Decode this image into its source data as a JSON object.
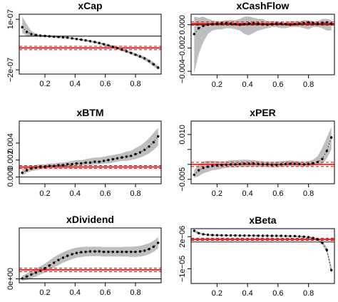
{
  "colors": {
    "band": "#bebebe",
    "red": "#ff0000",
    "redDash": "#e60000",
    "zero": "#000000",
    "curve": "#000000"
  },
  "chart_data": [
    {
      "type": "line",
      "title": "xCap",
      "xlim": [
        0.03,
        0.97
      ],
      "ylim": [
        -2.25e-07,
        1.3e-07
      ],
      "xticks": [
        0.2,
        0.4,
        0.6,
        0.8
      ],
      "xtick_labels": [
        "0.2",
        "0.4",
        "0.6",
        "0.8"
      ],
      "yticks": [
        1e-07,
        -2e-07
      ],
      "ytick_labels": [
        "1e-07",
        "−2e-07"
      ],
      "zero": 0,
      "mean": -7e-08,
      "mean_band": [
        -8e-08,
        -6e-08
      ],
      "x": [
        0.05,
        0.08,
        0.11,
        0.14,
        0.17,
        0.2,
        0.23,
        0.26,
        0.29,
        0.32,
        0.35,
        0.38,
        0.41,
        0.44,
        0.47,
        0.5,
        0.53,
        0.56,
        0.59,
        0.62,
        0.65,
        0.68,
        0.71,
        0.74,
        0.77,
        0.8,
        0.83,
        0.86,
        0.89,
        0.92,
        0.95
      ],
      "y": [
        5.3e-08,
        2.5e-08,
        1.2e-08,
        6e-09,
        3e-09,
        1e-09,
        -1e-09,
        -3e-09,
        -5e-09,
        -7e-09,
        -9e-09,
        -1.3e-08,
        -1.7e-08,
        -2.1e-08,
        -2.5e-08,
        -3e-08,
        -3.5e-08,
        -4.1e-08,
        -4.8e-08,
        -5.5e-08,
        -6.3e-08,
        -7.1e-08,
        -8e-08,
        -9e-08,
        -1e-07,
        -1.1e-07,
        -1.2e-07,
        -1.32e-07,
        -1.48e-07,
        -1.67e-07,
        -1.87e-07
      ],
      "lower": [
        2e-08,
        1e-09,
        -3e-09,
        -2e-09,
        -3e-09,
        -5e-09,
        -6e-09,
        -8e-09,
        -1e-08,
        -1.2e-08,
        -1.4e-08,
        -1.8e-08,
        -2.2e-08,
        -2.6e-08,
        -3.1e-08,
        -3.6e-08,
        -4.2e-08,
        -4.8e-08,
        -5.5e-08,
        -6.2e-08,
        -7e-08,
        -7.8e-08,
        -8.8e-08,
        -9.8e-08,
        -1.08e-07,
        -1.19e-07,
        -1.3e-07,
        -1.43e-07,
        -1.6e-07,
        -1.8e-07,
        -2e-07
      ],
      "upper": [
        1.15e-07,
        7e-08,
        3e-08,
        1.6e-08,
        1e-08,
        7e-09,
        5e-09,
        2e-09,
        0,
        -2e-09,
        -4e-09,
        -8e-09,
        -1.2e-08,
        -1.6e-08,
        -2e-08,
        -2.4e-08,
        -2.9e-08,
        -3.4e-08,
        -4.1e-08,
        -4.8e-08,
        -5.6e-08,
        -6.4e-08,
        -7.3e-08,
        -8.2e-08,
        -9.1e-08,
        -1.01e-07,
        -1.11e-07,
        -1.22e-07,
        -1.37e-07,
        -1.54e-07,
        -1.75e-07
      ]
    },
    {
      "type": "line",
      "title": "xCashFlow",
      "xlim": [
        0.03,
        0.97
      ],
      "ylim": [
        -0.0043,
        0.0009
      ],
      "xticks": [
        0.2,
        0.4,
        0.6,
        0.8
      ],
      "xtick_labels": [
        "0.2",
        "0.4",
        "0.6",
        "0.8"
      ],
      "yticks": [
        0.0,
        -0.002,
        -0.004
      ],
      "ytick_labels": [
        "0.000",
        "−0.002",
        "−0.004"
      ],
      "zero": 0,
      "mean": 0.0001,
      "mean_band": [
        -4e-05,
        0.00024
      ],
      "x": [
        0.05,
        0.08,
        0.11,
        0.14,
        0.17,
        0.2,
        0.23,
        0.26,
        0.29,
        0.32,
        0.35,
        0.38,
        0.41,
        0.44,
        0.47,
        0.5,
        0.53,
        0.56,
        0.59,
        0.62,
        0.65,
        0.68,
        0.71,
        0.74,
        0.77,
        0.8,
        0.83,
        0.86,
        0.89,
        0.92,
        0.95
      ],
      "y": [
        -0.0008,
        -0.0003,
        -0.0001,
        0.0,
        5e-05,
        0.0001,
        0.00012,
        0.00015,
        0.0001,
        5e-05,
        0.0,
        5e-05,
        0.0001,
        0.00015,
        0.0001,
        5e-05,
        0.0,
        5e-05,
        0.0001,
        0.0001,
        5e-05,
        0.0,
        5e-05,
        0.0001,
        0.00015,
        0.0002,
        0.00015,
        0.0001,
        0.00015,
        0.0002,
        0.0001
      ],
      "lower": [
        -0.0042,
        -0.0025,
        -0.0015,
        -0.0008,
        -0.0005,
        -0.0004,
        -0.0004,
        -0.0003,
        -0.0003,
        -0.0004,
        -0.0005,
        -0.0008,
        -0.0009,
        -0.0007,
        -0.0005,
        -0.0004,
        -0.0003,
        -0.0002,
        -0.0002,
        -0.0003,
        -0.0003,
        -0.0002,
        -0.0002,
        -0.0002,
        -0.0003,
        -0.0004,
        -0.0002,
        -0.0002,
        -0.0003,
        -0.0005,
        -0.0005
      ],
      "upper": [
        0.0007,
        0.0006,
        0.0007,
        0.0005,
        0.0004,
        0.0003,
        0.0003,
        0.0004,
        0.0004,
        0.0004,
        0.0005,
        0.0007,
        0.0007,
        0.0006,
        0.0005,
        0.0005,
        0.0003,
        0.0003,
        0.0003,
        0.0002,
        0.0002,
        0.0003,
        0.0003,
        0.0003,
        0.0004,
        0.0004,
        0.0003,
        0.0003,
        0.0005,
        0.0005,
        0.0004
      ]
    },
    {
      "type": "line",
      "title": "xBTM",
      "xlim": [
        0.03,
        0.97
      ],
      "ylim": [
        -0.0008,
        0.0066
      ],
      "xticks": [
        0.2,
        0.4,
        0.6,
        0.8
      ],
      "xtick_labels": [
        "0.2",
        "0.4",
        "0.6",
        "0.8"
      ],
      "yticks": [
        0.0,
        0.002,
        0.004
      ],
      "ytick_labels": [
        "0.000",
        "0.002",
        "0.004"
      ],
      "zero": 0,
      "mean": 0.00118,
      "mean_band": [
        0.00102,
        0.00134
      ],
      "x": [
        0.05,
        0.08,
        0.11,
        0.14,
        0.17,
        0.2,
        0.23,
        0.26,
        0.29,
        0.32,
        0.35,
        0.38,
        0.41,
        0.44,
        0.47,
        0.5,
        0.53,
        0.56,
        0.59,
        0.62,
        0.65,
        0.68,
        0.71,
        0.74,
        0.77,
        0.8,
        0.83,
        0.86,
        0.89,
        0.92,
        0.95
      ],
      "y": [
        0.0005,
        0.0008,
        0.001,
        0.0011,
        0.0012,
        0.0012,
        0.0013,
        0.0013,
        0.0014,
        0.0014,
        0.0015,
        0.0015,
        0.0016,
        0.0016,
        0.0017,
        0.0017,
        0.0018,
        0.0018,
        0.0019,
        0.002,
        0.0021,
        0.0022,
        0.0023,
        0.0024,
        0.0025,
        0.0027,
        0.0029,
        0.0032,
        0.0036,
        0.0041,
        0.0048
      ],
      "lower": [
        0.0002,
        0.0005,
        0.0007,
        0.0008,
        0.0009,
        0.001,
        0.0011,
        0.0011,
        0.0012,
        0.0012,
        0.0012,
        0.0013,
        0.0013,
        0.0014,
        0.0014,
        0.0014,
        0.0015,
        0.0015,
        0.0016,
        0.0016,
        0.0017,
        0.0018,
        0.0019,
        0.0019,
        0.002,
        0.0021,
        0.0023,
        0.0025,
        0.0028,
        0.0032,
        0.0037
      ],
      "upper": [
        0.0011,
        0.0012,
        0.0013,
        0.0014,
        0.0015,
        0.0015,
        0.0016,
        0.0016,
        0.0017,
        0.0017,
        0.0018,
        0.0019,
        0.002,
        0.002,
        0.0021,
        0.0022,
        0.0023,
        0.0023,
        0.0024,
        0.0025,
        0.0026,
        0.0027,
        0.0028,
        0.003,
        0.0031,
        0.0034,
        0.0037,
        0.0041,
        0.0046,
        0.0052,
        0.0058
      ]
    },
    {
      "type": "line",
      "title": "xPER",
      "xlim": [
        0.03,
        0.97
      ],
      "ylim": [
        -0.0065,
        0.0145
      ],
      "xticks": [
        0.2,
        0.4,
        0.6,
        0.8
      ],
      "xtick_labels": [
        "0.2",
        "0.4",
        "0.6",
        "0.8"
      ],
      "yticks": [
        -0.005,
        0.0,
        0.005,
        0.01
      ],
      "ytick_labels": [
        "−0.005",
        "",
        "",
        "0.010"
      ],
      "zero": 0,
      "mean": 0.0,
      "mean_band": [
        -0.0007,
        0.0007
      ],
      "x": [
        0.05,
        0.08,
        0.11,
        0.14,
        0.17,
        0.2,
        0.23,
        0.26,
        0.29,
        0.32,
        0.35,
        0.38,
        0.41,
        0.44,
        0.47,
        0.5,
        0.53,
        0.56,
        0.59,
        0.62,
        0.65,
        0.68,
        0.71,
        0.74,
        0.77,
        0.8,
        0.83,
        0.86,
        0.89,
        0.92,
        0.95
      ],
      "y": [
        -0.0035,
        -0.002,
        -0.0012,
        -0.0008,
        -0.0005,
        -0.0003,
        -0.0002,
        -0.0001,
        0.0,
        0.0,
        0.0001,
        0.0002,
        0.0002,
        0.0002,
        0.0001,
        0.0,
        0.0,
        -0.0001,
        -0.0001,
        0.0,
        0.0001,
        0.0002,
        0.0002,
        0.0001,
        0.0,
        0.0001,
        0.0003,
        0.0008,
        0.0018,
        0.0045,
        0.009
      ],
      "lower": [
        -0.0045,
        -0.004,
        -0.003,
        -0.0025,
        -0.002,
        -0.0018,
        -0.0015,
        -0.0012,
        -0.001,
        -0.001,
        -0.0009,
        -0.0009,
        -0.0008,
        -0.0008,
        -0.0008,
        -0.0009,
        -0.0009,
        -0.001,
        -0.001,
        -0.0008,
        -0.0007,
        -0.0006,
        -0.0007,
        -0.0008,
        -0.0008,
        -0.0007,
        -0.0005,
        -0.0003,
        0.0,
        0.002,
        0.005
      ],
      "upper": [
        -0.002,
        0.0,
        0.001,
        0.0012,
        0.0012,
        0.0011,
        0.001,
        0.0011,
        0.0014,
        0.0014,
        0.0015,
        0.0016,
        0.0015,
        0.0014,
        0.0012,
        0.001,
        0.0009,
        0.0008,
        0.0009,
        0.001,
        0.0012,
        0.0013,
        0.0012,
        0.001,
        0.0009,
        0.0011,
        0.0016,
        0.0028,
        0.0055,
        0.009,
        0.0125
      ]
    },
    {
      "type": "line",
      "title": "xDividend",
      "xlim": [
        0.03,
        0.97
      ],
      "ylim": [
        -1e-06,
        1.3e-05
      ],
      "xticks": [
        0.2,
        0.4,
        0.6,
        0.8
      ],
      "xtick_labels": [
        "0.2",
        "0.4",
        "0.6",
        "0.8"
      ],
      "yticks": [
        0
      ],
      "ytick_labels": [
        "0e+00"
      ],
      "zero": 0,
      "mean": 2.3e-06,
      "mean_band": [
        1.85e-06,
        2.75e-06
      ],
      "x": [
        0.05,
        0.08,
        0.11,
        0.14,
        0.17,
        0.2,
        0.23,
        0.26,
        0.29,
        0.32,
        0.35,
        0.38,
        0.41,
        0.44,
        0.47,
        0.5,
        0.53,
        0.56,
        0.59,
        0.62,
        0.65,
        0.68,
        0.71,
        0.74,
        0.77,
        0.8,
        0.83,
        0.86,
        0.89,
        0.92,
        0.95
      ],
      "y": [
        1e-07,
        6e-07,
        1.1e-06,
        1.6e-06,
        2.1e-06,
        2.7e-06,
        3.4e-06,
        4.1e-06,
        4.8e-06,
        5.4e-06,
        5.9e-06,
        6.3e-06,
        6.6e-06,
        6.8e-06,
        6.9e-06,
        7e-06,
        7e-06,
        7e-06,
        6.9e-06,
        6.9e-06,
        6.9e-06,
        6.9e-06,
        6.9e-06,
        6.9e-06,
        6.9e-06,
        6.9e-06,
        7e-06,
        7.2e-06,
        7.6e-06,
        8.2e-06,
        9.2e-06
      ],
      "lower": [
        -5e-07,
        -3e-07,
        1e-07,
        6e-07,
        1.1e-06,
        1.6e-06,
        2.2e-06,
        2.9e-06,
        3.5e-06,
        4.1e-06,
        4.6e-06,
        5e-06,
        5.4e-06,
        5.6e-06,
        5.7e-06,
        5.8e-06,
        5.8e-06,
        5.8e-06,
        5.7e-06,
        5.7e-06,
        5.7e-06,
        5.7e-06,
        5.7e-06,
        5.7e-06,
        5.6e-06,
        5.6e-06,
        5.7e-06,
        5.9e-06,
        6.3e-06,
        6.9e-06,
        7.8e-06
      ],
      "upper": [
        8e-07,
        1.4e-06,
        2e-06,
        2.6e-06,
        3.2e-06,
        3.9e-06,
        4.7e-06,
        5.5e-06,
        6.2e-06,
        6.8e-06,
        7.3e-06,
        7.7e-06,
        8e-06,
        8.1e-06,
        8.2e-06,
        8.2e-06,
        8.2e-06,
        8.2e-06,
        8.1e-06,
        8.1e-06,
        8.1e-06,
        8.1e-06,
        8.1e-06,
        8.2e-06,
        8.2e-06,
        8.3e-06,
        8.4e-06,
        8.7e-06,
        9.1e-06,
        9.7e-06,
        1.07e-05
      ]
    },
    {
      "type": "line",
      "title": "xBeta",
      "xlim": [
        0.03,
        0.97
      ],
      "ylim": [
        -1.55e-05,
        5e-06
      ],
      "xticks": [
        0.2,
        0.4,
        0.6,
        0.8
      ],
      "xtick_labels": [
        "0.2",
        "0.4",
        "0.6",
        "0.8"
      ],
      "yticks": [
        2e-06,
        -1e-05
      ],
      "ytick_labels": [
        "2e−06",
        "−1e−05"
      ],
      "zero": 0,
      "mean": 1e-06,
      "mean_band": [
        6e-07,
        1.4e-06
      ],
      "x": [
        0.05,
        0.08,
        0.11,
        0.14,
        0.17,
        0.2,
        0.23,
        0.26,
        0.29,
        0.32,
        0.35,
        0.38,
        0.41,
        0.44,
        0.47,
        0.5,
        0.53,
        0.56,
        0.59,
        0.62,
        0.65,
        0.68,
        0.71,
        0.74,
        0.77,
        0.8,
        0.83,
        0.86,
        0.89,
        0.92,
        0.95
      ],
      "y": [
        4.2e-06,
        3.3e-06,
        2.9e-06,
        2.7e-06,
        2.6e-06,
        2.55e-06,
        2.5e-06,
        2.5e-06,
        2.45e-06,
        2.45e-06,
        2.4e-06,
        2.4e-06,
        2.4e-06,
        2.4e-06,
        2.35e-06,
        2.35e-06,
        2.35e-06,
        2.3e-06,
        2.3e-06,
        2.3e-06,
        2.25e-06,
        2.2e-06,
        2.2e-06,
        2.1e-06,
        2e-06,
        1.8e-06,
        1.5e-06,
        9e-07,
        -3e-07,
        -3e-06,
        -1.05e-05
      ],
      "lower": [
        3.6e-06,
        2.9e-06,
        2.6e-06,
        2.45e-06,
        2.35e-06,
        2.3e-06,
        2.3e-06,
        2.25e-06,
        2.25e-06,
        2.2e-06,
        2.2e-06,
        2.2e-06,
        2.2e-06,
        2.15e-06,
        2.15e-06,
        2.15e-06,
        2.1e-06,
        2.1e-06,
        2.1e-06,
        2.05e-06,
        2e-06,
        2e-06,
        1.95e-06,
        1.85e-06,
        1.75e-06,
        1.5e-06,
        1.1e-06,
        4e-07,
        -1e-06,
        -4e-06,
        -1.2e-05
      ],
      "upper": [
        4.8e-06,
        3.8e-06,
        3.2e-06,
        2.95e-06,
        2.85e-06,
        2.8e-06,
        2.75e-06,
        2.7e-06,
        2.7e-06,
        2.65e-06,
        2.65e-06,
        2.65e-06,
        2.6e-06,
        2.6e-06,
        2.6e-06,
        2.55e-06,
        2.55e-06,
        2.55e-06,
        2.5e-06,
        2.5e-06,
        2.45e-06,
        2.45e-06,
        2.4e-06,
        2.35e-06,
        2.25e-06,
        2.1e-06,
        1.9e-06,
        1.4e-06,
        4e-07,
        -2e-06,
        -9e-06
      ]
    }
  ]
}
